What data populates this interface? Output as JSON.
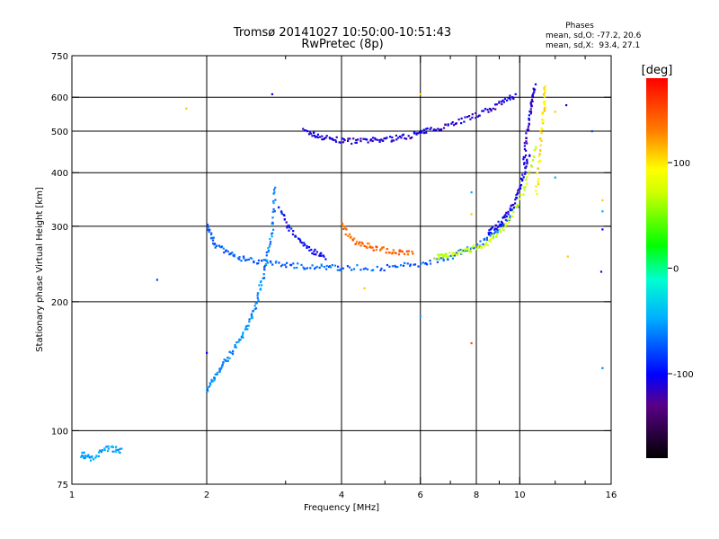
{
  "chart_data": {
    "type": "scatter",
    "title": "Tromsø 20141027 10:50:00-10:51:43",
    "subtitle": "RwPretec (8p)",
    "xlabel": "Frequency [MHz]",
    "ylabel": "Stationary phase Virtual Height [km]",
    "x_scale": "log",
    "y_scale": "log",
    "xlim": [
      1,
      16
    ],
    "ylim": [
      75,
      750
    ],
    "x_ticks": [
      {
        "value": 1,
        "label": "1"
      },
      {
        "value": 2,
        "label": "2"
      },
      {
        "value": 4,
        "label": "4"
      },
      {
        "value": 6,
        "label": "6"
      },
      {
        "value": 8,
        "label": "8"
      },
      {
        "value": 10,
        "label": "10"
      },
      {
        "value": 16,
        "label": "16"
      }
    ],
    "x_minor_ticks": [
      3,
      5,
      7,
      9,
      12,
      14
    ],
    "x_grid": [
      2,
      4,
      6,
      8,
      10
    ],
    "y_ticks": [
      {
        "value": 75,
        "label": "75"
      },
      {
        "value": 100,
        "label": "100"
      },
      {
        "value": 200,
        "label": "200"
      },
      {
        "value": 300,
        "label": "300"
      },
      {
        "value": 400,
        "label": "400"
      },
      {
        "value": 500,
        "label": "500"
      },
      {
        "value": 600,
        "label": "600"
      },
      {
        "value": 750,
        "label": "750"
      }
    ],
    "y_grid": [
      100,
      200,
      300,
      400,
      500,
      600
    ],
    "grid": true,
    "stats": {
      "title": "Phases",
      "line1": "mean, sd,O: -77.2, 20.6",
      "line2": "mean, sd,X:  93.4, 27.1"
    },
    "colorbar": {
      "label": "[deg]",
      "range": [
        -180,
        180
      ],
      "ticks": [
        {
          "value": 100,
          "label": "100"
        },
        {
          "value": 0,
          "label": "0"
        },
        {
          "value": -100,
          "label": "-100"
        }
      ]
    },
    "traces": [
      {
        "freq": [
          3.3,
          3.6,
          4.0,
          4.5,
          5.0,
          5.6,
          6.2,
          7.0,
          8.0,
          9.0,
          9.8
        ],
        "height": [
          500,
          485,
          475,
          474,
          478,
          486,
          500,
          520,
          545,
          575,
          610
        ],
        "phase": -110
      },
      {
        "freq": [
          2.0,
          2.1,
          2.3,
          2.6,
          3.0,
          3.5,
          4.0,
          5.0,
          6.0,
          7.0,
          8.0,
          9.0,
          10.0
        ],
        "height": [
          300,
          270,
          255,
          248,
          244,
          241,
          240,
          240,
          245,
          255,
          270,
          295,
          340
        ],
        "phase": -70
      },
      {
        "freq": [
          2.9,
          3.1,
          3.4,
          3.7
        ],
        "height": [
          330,
          290,
          265,
          252
        ],
        "phase": -100
      },
      {
        "freq": [
          4.0,
          4.3,
          4.7,
          5.2,
          5.8
        ],
        "height": [
          300,
          275,
          268,
          262,
          258
        ],
        "phase": 140
      },
      {
        "freq": [
          6.5,
          7.0,
          7.8,
          8.5,
          9.3,
          10.2,
          10.9
        ],
        "height": [
          255,
          258,
          265,
          275,
          300,
          360,
          470
        ],
        "phase": 70
      },
      {
        "freq": [
          8.5,
          9.0,
          9.6,
          10.1,
          10.5
        ],
        "height": [
          290,
          305,
          330,
          380,
          440
        ],
        "phase": -105
      },
      {
        "freq": [
          10.2,
          10.4,
          10.6,
          10.8
        ],
        "height": [
          420,
          500,
          580,
          640
        ],
        "phase": -110
      },
      {
        "freq": [
          10.9,
          11.1,
          11.3,
          11.4
        ],
        "height": [
          360,
          450,
          560,
          640
        ],
        "phase": 100
      },
      {
        "freq": [
          2.0,
          2.1,
          2.2,
          2.35,
          2.5,
          2.6,
          2.7,
          2.8,
          2.85
        ],
        "height": [
          125,
          135,
          145,
          160,
          180,
          205,
          240,
          290,
          380
        ],
        "phase": -60
      },
      {
        "freq": [
          1.05,
          1.1,
          1.2,
          1.3
        ],
        "height": [
          88,
          86,
          91,
          90
        ],
        "phase": -50
      }
    ],
    "points": [
      {
        "freq": 1.8,
        "height": 565,
        "phase": 110
      },
      {
        "freq": 2.0,
        "height": 152,
        "phase": -100
      },
      {
        "freq": 2.8,
        "height": 610,
        "phase": -110
      },
      {
        "freq": 1.55,
        "height": 225,
        "phase": -80
      },
      {
        "freq": 7.8,
        "height": 160,
        "phase": 150
      },
      {
        "freq": 7.8,
        "height": 320,
        "phase": 110
      },
      {
        "freq": 7.8,
        "height": 360,
        "phase": -50
      },
      {
        "freq": 6.0,
        "height": 610,
        "phase": 110
      },
      {
        "freq": 12.7,
        "height": 575,
        "phase": -110
      },
      {
        "freq": 12.0,
        "height": 555,
        "phase": 110
      },
      {
        "freq": 15.3,
        "height": 345,
        "phase": 110
      },
      {
        "freq": 15.3,
        "height": 325,
        "phase": -50
      },
      {
        "freq": 15.3,
        "height": 295,
        "phase": -100
      },
      {
        "freq": 15.2,
        "height": 235,
        "phase": -110
      },
      {
        "freq": 15.3,
        "height": 140,
        "phase": -60
      },
      {
        "freq": 12.8,
        "height": 255,
        "phase": 110
      },
      {
        "freq": 12.0,
        "height": 390,
        "phase": -50
      },
      {
        "freq": 6.0,
        "height": 185,
        "phase": -50
      },
      {
        "freq": 4.5,
        "height": 215,
        "phase": 110
      },
      {
        "freq": 14.5,
        "height": 500,
        "phase": -80
      }
    ]
  }
}
